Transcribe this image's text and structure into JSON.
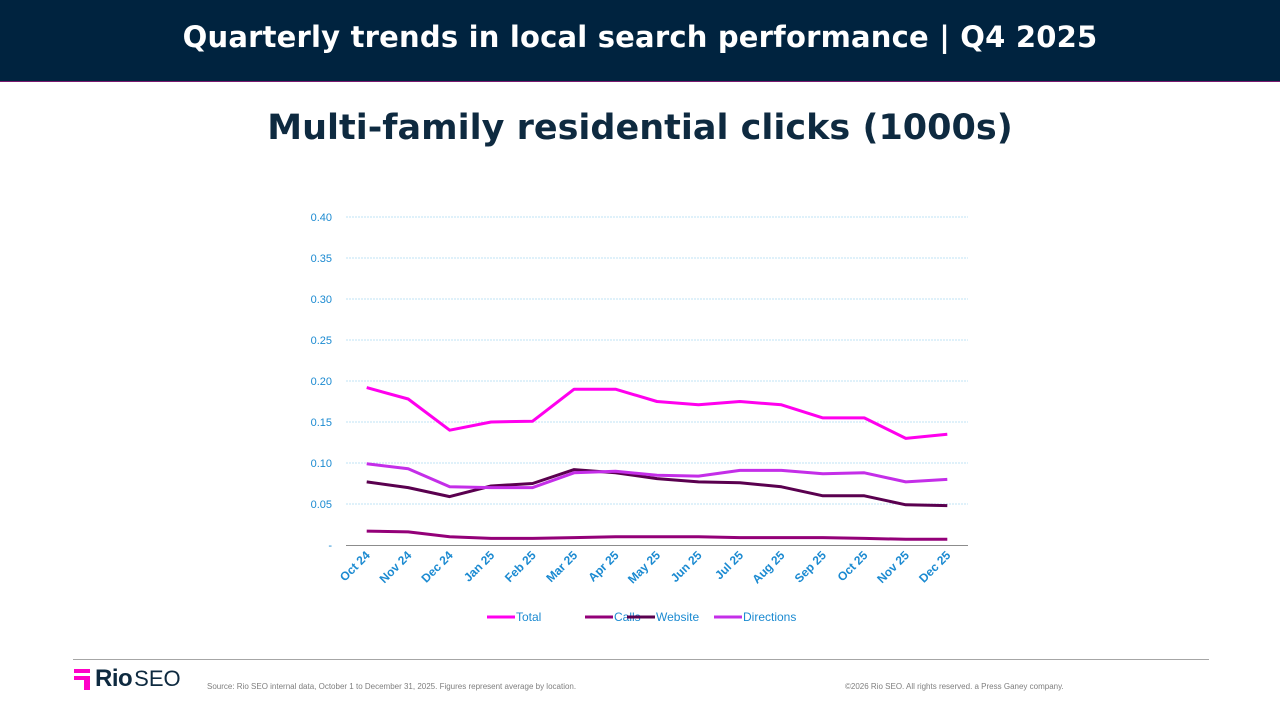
{
  "header": {
    "title": "Quarterly trends in local search performance | Q4 2025"
  },
  "chart_title": "Multi-family residential clicks (1000s)",
  "colors": {
    "header_bg": "#00233f",
    "axis_text": "#1b8ad1",
    "gridline": "#bfe3f5",
    "total": "#ff00ee",
    "calls": "#930078",
    "website": "#5a004f",
    "directions": "#c42ee8",
    "brand_pink": "#ff00c8"
  },
  "footer": {
    "logo_rio": "Rio",
    "logo_seo": "SEO",
    "source": "Source: Rio SEO internal data, October 1 to December 31, 2025. Figures represent average by location.",
    "copyright": "©2026 Rio SEO. All rights reserved. a Press Ganey company."
  },
  "chart_data": {
    "type": "line",
    "title": "Multi-family residential clicks (1000s)",
    "xlabel": "",
    "ylabel": "",
    "ylim": [
      0,
      0.4
    ],
    "yticks": [
      0,
      0.05,
      0.1,
      0.15,
      0.2,
      0.25,
      0.3,
      0.35,
      0.4
    ],
    "ytick_labels": [
      "-",
      "0.05",
      "0.10",
      "0.15",
      "0.20",
      "0.25",
      "0.30",
      "0.35",
      "0.40"
    ],
    "grid": true,
    "legend_position": "bottom",
    "categories": [
      "Oct 24",
      "Nov 24",
      "Dec 24",
      "Jan 25",
      "Feb 25",
      "Mar 25",
      "Apr 25",
      "May 25",
      "Jun 25",
      "Jul 25",
      "Aug 25",
      "Sep 25",
      "Oct 25",
      "Nov 25",
      "Dec 25"
    ],
    "series": [
      {
        "name": "Total",
        "color": "#ff00ee",
        "values": [
          0.192,
          0.178,
          0.14,
          0.15,
          0.151,
          0.19,
          0.19,
          0.175,
          0.171,
          0.175,
          0.171,
          0.155,
          0.155,
          0.13,
          0.135
        ]
      },
      {
        "name": "Calls",
        "color": "#930078",
        "values": [
          0.017,
          0.016,
          0.01,
          0.008,
          0.008,
          0.009,
          0.01,
          0.01,
          0.01,
          0.009,
          0.009,
          0.009,
          0.008,
          0.007,
          0.007
        ]
      },
      {
        "name": "Website",
        "color": "#5a004f",
        "values": [
          0.077,
          0.07,
          0.059,
          0.072,
          0.075,
          0.092,
          0.088,
          0.081,
          0.077,
          0.076,
          0.071,
          0.06,
          0.06,
          0.049,
          0.048
        ]
      },
      {
        "name": "Directions",
        "color": "#c42ee8",
        "values": [
          0.099,
          0.093,
          0.071,
          0.07,
          0.07,
          0.088,
          0.09,
          0.085,
          0.084,
          0.091,
          0.091,
          0.087,
          0.088,
          0.077,
          0.08
        ]
      }
    ]
  }
}
